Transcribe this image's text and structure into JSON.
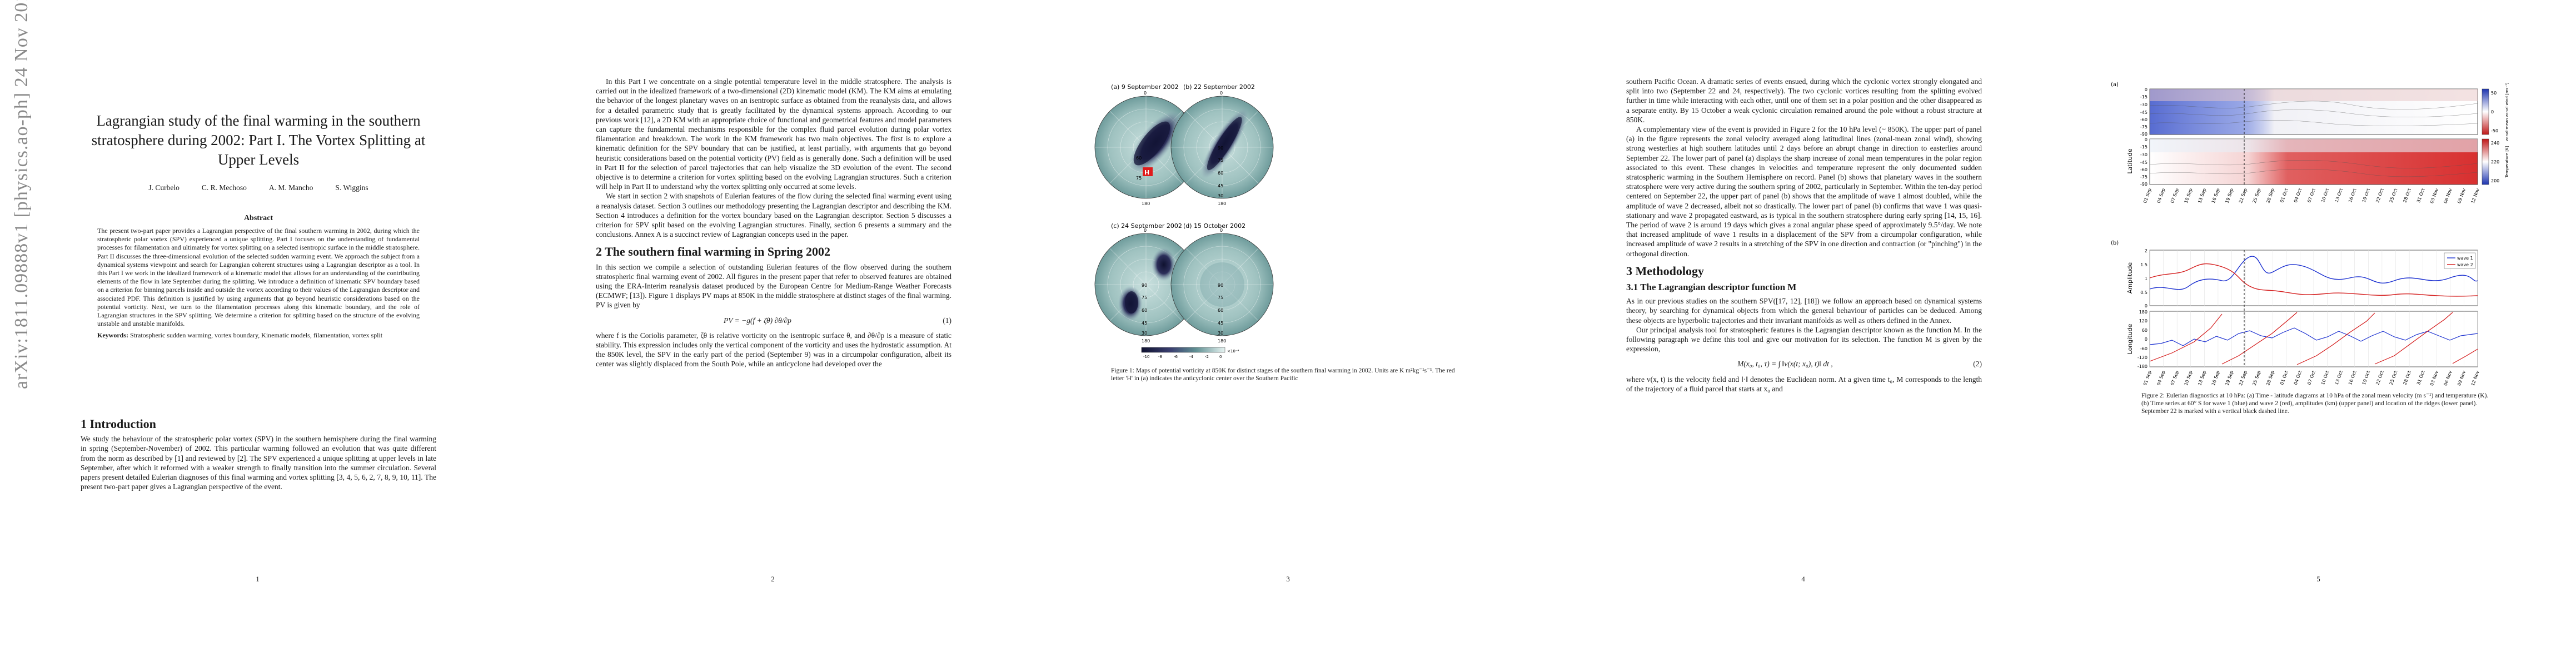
{
  "arxiv_id": "arXiv:1811.09888v1  [physics.ao-ph]  24 Nov 2018",
  "paper": {
    "title": "Lagrangian study of the final warming in the southern stratosphere during 2002: Part I. The Vortex Splitting at Upper Levels",
    "authors": [
      "J. Curbelo",
      "C. R. Mechoso",
      "A. M. Mancho",
      "S. Wiggins"
    ],
    "abstract_heading": "Abstract",
    "abstract": "The present two-part paper provides a Lagrangian perspective of the final southern warming in 2002, during which the stratospheric polar vortex (SPV) experienced a unique splitting. Part I focuses on the understanding of fundamental processes for filamentation and ultimately for vortex splitting on a selected isentropic surface in the middle stratosphere. Part II discusses the three-dimensional evolution of the selected sudden warming event. We approach the subject from a dynamical systems viewpoint and search for Lagrangian coherent structures using a Lagrangian descriptor as a tool. In this Part I we work in the idealized framework of a kinematic model that allows for an understanding of the contributing elements of the flow in late September during the splitting. We introduce a definition of kinematic SPV boundary based on a criterion for binning parcels inside and outside the vortex according to their values of the Lagrangian descriptor and associated PDF. This definition is justified by using arguments that go beyond heuristic considerations based on the potential vorticity. Next, we turn to the filamentation processes along this kinematic boundary, and the role of Lagrangian structures in the SPV splitting. We determine a criterion for splitting based on the structure of the evolving unstable and unstable manifolds.",
    "keywords_label": "Keywords:",
    "keywords": "Stratospheric sudden warming, vortex boundary, Kinematic models, filamentation, vortex split",
    "section1": "1   Introduction",
    "intro": "We study the behaviour of the stratospheric polar vortex (SPV) in the southern hemisphere during the final warming in spring (September-November) of 2002. This particular warming followed an evolution that was quite different from the norm as described by [1] and reviewed by [2]. The SPV experienced a unique splitting at upper levels in late September, after which it reformed with a weaker strength to finally transition into the summer circulation. Several papers present detailed Eulerian diagnoses of this final warming and vortex splitting [3, 4, 5, 6, 2, 7, 8, 9, 10, 11]. The present two-part paper gives a Lagrangian perspective of the event."
  },
  "page2": {
    "p1": "In this Part I we concentrate on a single potential temperature level in the middle stratosphere. The analysis is carried out in the idealized framework of a two-dimensional (2D) kinematic model (KM). The KM aims at emulating the behavior of the longest planetary waves on an isentropic surface as obtained from the reanalysis data, and allows for a detailed parametric study that is greatly facilitated by the dynamical systems approach. According to our previous work [12], a 2D KM with an appropriate choice of functional and geometrical features and model parameters can capture the fundamental mechanisms responsible for the complex fluid parcel evolution during polar vortex filamentation and breakdown. The work in the KM framework has two main objectives. The first is to explore a kinematic definition for the SPV boundary that can be justified, at least partially, with arguments that go beyond heuristic considerations based on the potential vorticity (PV) field as is generally done. Such a definition will be used in Part II for the selection of parcel trajectories that can help visualize the 3D evolution of the event. The second objective is to determine a criterion for vortex splitting based on the evolving Lagrangian structures. Such a criterion will help in Part II to understand why the vortex splitting only occurred at some levels.",
    "p2": "We start in section 2 with snapshots of Eulerian features of the flow during the selected final warming event using a reanalysis dataset. Section 3 outlines our methodology presenting the Lagrangian descriptor and describing the KM. Section 4 introduces a definition for the vortex boundary based on the Lagrangian descriptor. Section 5 discusses a criterion for SPV split based on the evolving Lagrangian structures. Finally, section 6 presents a summary and the conclusions. Annex A is a succinct review of Lagrangian concepts used in the paper.",
    "section2": "2   The southern final warming in Spring 2002",
    "p3": "In this section we compile a selection of outstanding Eulerian features of the flow observed during the southern stratospheric final warming event of 2002. All figures in the present paper that refer to observed features are obtained using the ERA-Interim reanalysis dataset produced by the European Centre for Medium-Range Weather Forecasts (ECMWF; [13]). Figure 1 displays PV maps at 850K in the middle stratosphere at distinct stages of the final warming. PV is given by",
    "eq1": "PV = −g(f + ζθ) ∂θ/∂p",
    "eq1_num": "(1)",
    "p4": "where f is the Coriolis parameter, ζθ is relative vorticity on the isentropic surface θ, and ∂θ/∂p is a measure of static stability. This expression includes only the vertical component of the vorticity and uses the hydrostatic assumption. At the 850K level, the SPV in the early part of the period (September 9) was in a circumpolar configuration, albeit its center was slightly displaced from the South Pole, while an anticyclone had developed over the"
  },
  "figure1": {
    "panels": [
      {
        "label": "(a) 9 September 2002",
        "lat_labels": [
          "60",
          "75"
        ]
      },
      {
        "label": "(b) 22 September 2002",
        "lat_labels": [
          "90",
          "75",
          "60",
          "45",
          "30"
        ]
      },
      {
        "label": "(c) 24 September 2002",
        "lat_labels": [
          "90",
          "75",
          "60",
          "45",
          "30"
        ]
      },
      {
        "label": "(d) 15 October 2002",
        "lat_labels": [
          "90",
          "75",
          "60",
          "45",
          "30"
        ]
      }
    ],
    "lon_top": "0",
    "lon_bottom": "180",
    "lon_left": "90",
    "lon_right": "90",
    "high_marker": "H",
    "colorbar_ticks": [
      "-10",
      "-8",
      "-6",
      "-4",
      "-2",
      "0"
    ],
    "colorbar_unit": "×10⁻⁴",
    "caption": "Figure 1: Maps of potential vorticity at 850K for distinct stages of the southern final warming in 2002. Units are K m²kg⁻¹s⁻¹. The red letter 'H' in (a) indicates the anticyclonic center over the Southern Pacific",
    "colors": {
      "pv_low": "#0f1230",
      "pv_mid": "#5f8f92",
      "pv_high": "#d8ecea",
      "high_marker": "#e01b1b"
    }
  },
  "page4": {
    "p1": "southern Pacific Ocean. A dramatic series of events ensued, during which the cyclonic vortex strongly elongated and split into two (September 22 and 24, respectively). The two cyclonic vortices resulting from the splitting evolved further in time while interacting with each other, until one of them set in a polar position and the other disappeared as a separate entity. By 15 October a weak cyclonic circulation remained around the pole without a robust structure at 850K.",
    "p2": "A complementary view of the event is provided in Figure 2 for the 10 hPa level (~ 850K). The upper part of panel (a) in the figure represents the zonal velocity averaged along latitudinal lines (zonal-mean zonal wind), showing strong westerlies at high southern latitudes until 2 days before an abrupt change in direction to easterlies around September 22. The lower part of panel (a) displays the sharp increase of zonal mean temperatures in the polar region associated to this event. These changes in velocities and temperature represent the only documented sudden stratospheric warming in the Southern Hemisphere on record. Panel (b) shows that planetary waves in the southern stratosphere were very active during the southern spring of 2002, particularly in September. Within the ten-day period centered on September 22, the upper part of panel (b) shows that the amplitude of wave 1 almost doubled, while the amplitude of wave 2 decreased, albeit not so drastically. The lower part of panel (b) confirms that wave 1 was quasi-stationary and wave 2 propagated eastward, as is typical in the southern stratosphere during early spring [14, 15, 16]. The period of wave 2 is around 19 days which gives a zonal angular phase speed of approximately 9.5°/day. We note that increased amplitude of wave 1 results in a displacement of the SPV from a circumpolar configuration, while increased amplitude of wave 2 results in a stretching of the SPV in one direction and contraction (or \"pinching\") in the orthogonal direction.",
    "section3": "3   Methodology",
    "subsection31": "3.1   The Lagrangian descriptor function M",
    "p3": "As in our previous studies on the southern SPV([17, 12], [18]) we follow an approach based on dynamical systems theory, by searching for dynamical objects from which the general behaviour of particles can be deduced. Among these objects are hyperbolic trajectories and their invariant manifolds as well as others defined in the Annex.",
    "p4": "Our principal analysis tool for stratospheric features is the Lagrangian descriptor known as the function M. In the following paragraph we define this tool and give our motivation for its selection. The function M is given by the expression,",
    "eq2": "M(x₀, t₀, τ) = ∫ ‖v(x(t; x₀), t)‖ dt ,",
    "eq2_num": "(2)",
    "p5": "where v(x, t) is the velocity field and ‖·‖ denotes the Euclidean norm. At a given time t₀, M corresponds to the length of the trajectory of a fluid parcel that starts at x₀ and"
  },
  "figure2": {
    "panel_a_label": "(a)",
    "panel_b_label": "(b)",
    "lat_axis_label": "Latitude",
    "amp_axis_label": "Amplitude",
    "lon_axis_label": "Longitude",
    "lat_ticks": [
      "0",
      "-15",
      "-30",
      "-45",
      "-60",
      "-75",
      "-90"
    ],
    "amp_ticks": [
      "2",
      "1.5",
      "1",
      "0.5",
      "0"
    ],
    "lon_ticks": [
      "180",
      "120",
      "60",
      "0",
      "-60",
      "-120",
      "-180"
    ],
    "cbar1_label": "zonal-mean zonal wind [ms⁻¹]",
    "cbar1_ticks": [
      "50",
      "0",
      "-50"
    ],
    "cbar2_label": "Temperature [K]",
    "cbar2_ticks": [
      "240",
      "220",
      "200"
    ],
    "legend": [
      "wave 1",
      "wave 2"
    ],
    "dates": [
      "01 Sep",
      "04 Sep",
      "07 Sep",
      "10 Sep",
      "13 Sep",
      "16 Sep",
      "19 Sep",
      "22 Sep",
      "25 Sep",
      "28 Sep",
      "01 Oct",
      "04 Oct",
      "07 Oct",
      "10 Oct",
      "13 Oct",
      "16 Oct",
      "19 Oct",
      "22 Oct",
      "25 Oct",
      "28 Oct",
      "31 Oct",
      "03 Nov",
      "06 Nov",
      "09 Nov",
      "12 Nov"
    ],
    "caption": "Figure 2: Eulerian diagnostics at 10 hPa: (a) Time - latitude diagrams at 10 hPa of the zonal mean velocity (m s⁻¹) and temperature (K). (b) Time series at 60° S for wave 1 (blue) and wave 2 (red), amplitudes (km) (upper panel) and location of the ridges (lower panel). September 22 is marked with a vertical black dashed line.",
    "colors": {
      "wave1": "#1a2fd0",
      "wave2": "#d41c1c",
      "westerly": "#3a52c9",
      "easterly": "#d83030"
    }
  },
  "page_numbers": [
    "1",
    "2",
    "3",
    "4",
    "5"
  ]
}
